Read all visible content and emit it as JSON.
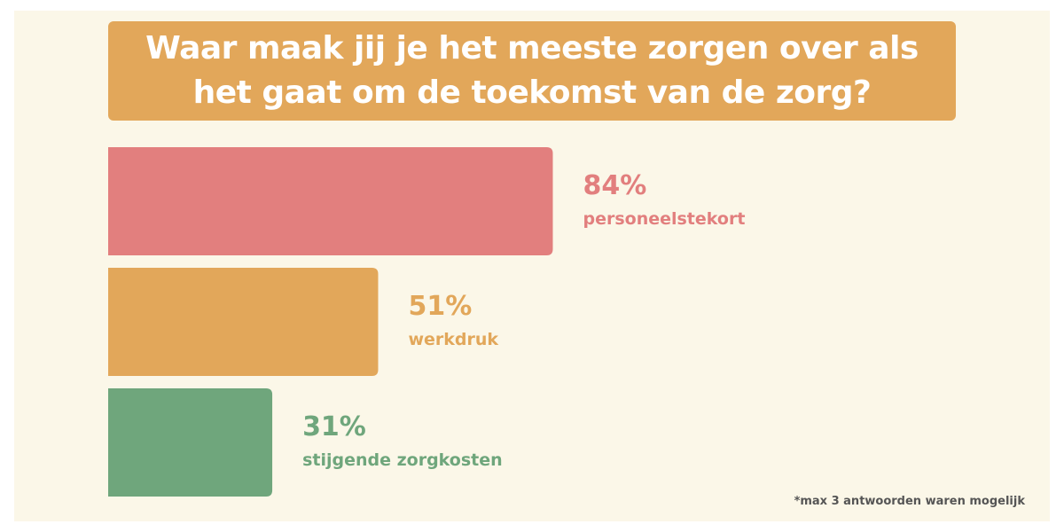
{
  "title": "Waar maak jij je het meeste zorgen over als het gaat om de toekomst van de zorg?",
  "footnote": "*max 3 antwoorden waren mogelijk",
  "chart_data": {
    "type": "bar",
    "orientation": "horizontal",
    "title": "Waar maak jij je het meeste zorgen over als het gaat om de toekomst van de zorg?",
    "categories": [
      "personeelstekort",
      "werkdruk",
      "stijgende zorgkosten"
    ],
    "values": [
      84,
      51,
      31
    ],
    "value_labels": [
      "84%",
      "51%",
      "31%"
    ],
    "colors": [
      "#e27f7e",
      "#e2a75a",
      "#6fa67c"
    ],
    "xlim": [
      0,
      100
    ],
    "grid": false
  }
}
